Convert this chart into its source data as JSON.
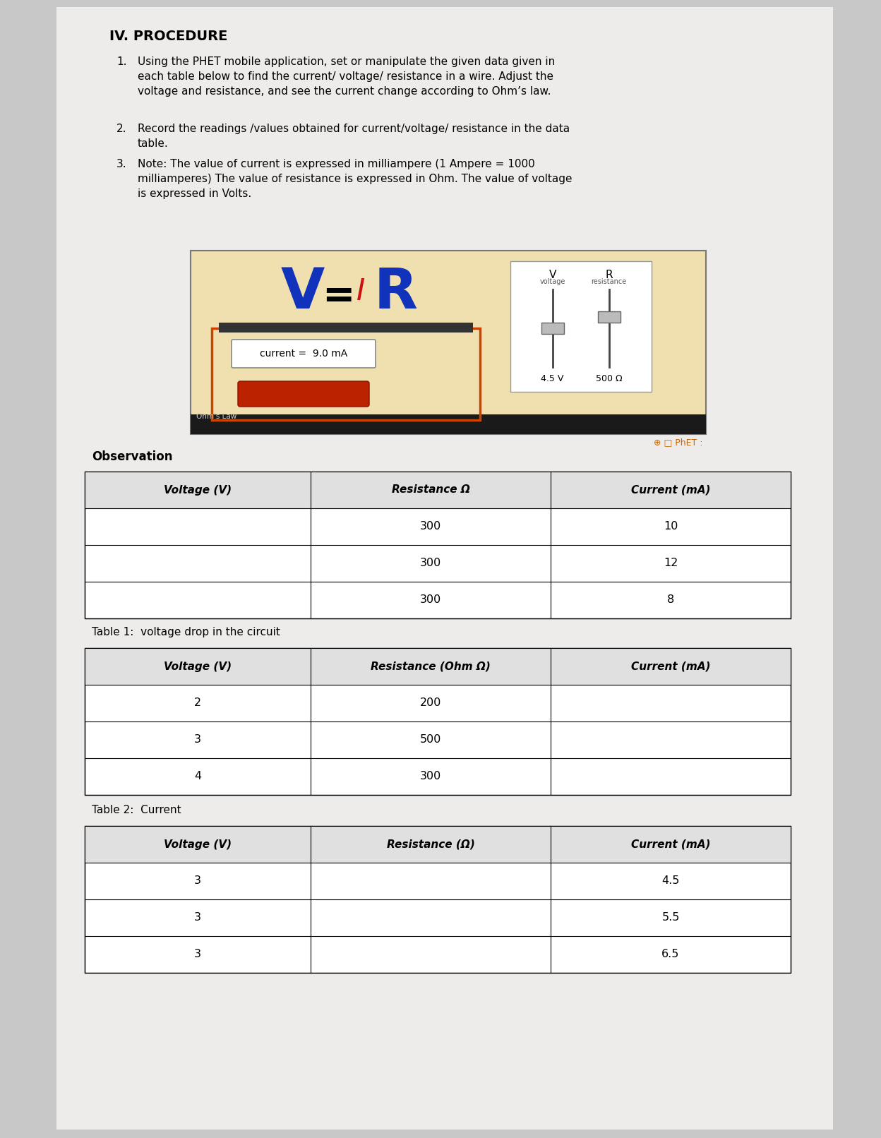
{
  "bg_color": "#c8c8c8",
  "page_bg": "#eeecea",
  "title": "IV. PROCEDURE",
  "proc1": "Using the PHET mobile application, set or manipulate the given data given in\neach table below to find the current/ voltage/ resistance in a wire. Adjust the\nvoltage and resistance, and see the current change according to Ohm’s law.",
  "proc2": "Record the readings /values obtained for current/voltage/ resistance in the data\ntable.",
  "proc3": "Note: The value of current is expressed in milliampere (1 Ampere = 1000\nmilliamperes) The value of resistance is expressed in Ohm. The value of voltage\nis expressed in Volts.",
  "phet_bg": "#f0e0b0",
  "phet_dark_bar": "#222222",
  "observation_label": "Observation",
  "obs_headers": [
    "Voltage (V)",
    "Resistance Ω",
    "Current (mA)"
  ],
  "obs_rows": [
    [
      "",
      "300",
      "10"
    ],
    [
      "",
      "300",
      "12"
    ],
    [
      "",
      "300",
      "8"
    ]
  ],
  "table1_caption": "Table 1:  voltage drop in the circuit",
  "t1_headers": [
    "Voltage (V)",
    "Resistance (Ohm Ω)",
    "Current (mA)"
  ],
  "t1_rows": [
    [
      "2",
      "200",
      ""
    ],
    [
      "3",
      "500",
      ""
    ],
    [
      "4",
      "300",
      ""
    ]
  ],
  "table2_caption": "Table 2:  Current",
  "t2_headers": [
    "Voltage (V)",
    "Resistance (Ω)",
    "Current (mA)"
  ],
  "t2_rows": [
    [
      "3",
      "",
      "4.5"
    ],
    [
      "3",
      "",
      "5.5"
    ],
    [
      "3",
      "",
      "6.5"
    ]
  ]
}
